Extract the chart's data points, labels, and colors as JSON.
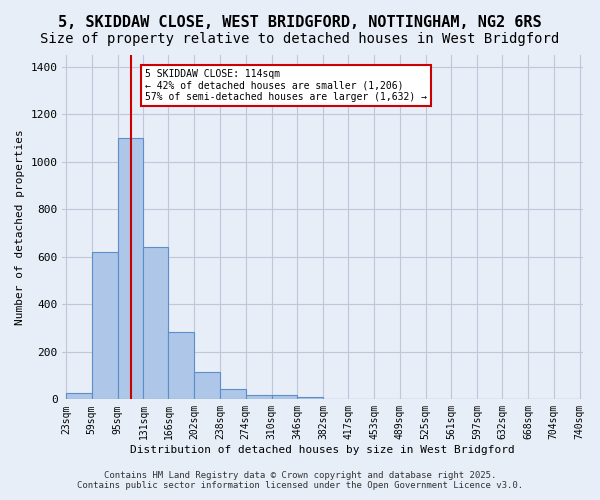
{
  "title": "5, SKIDDAW CLOSE, WEST BRIDGFORD, NOTTINGHAM, NG2 6RS",
  "subtitle": "Size of property relative to detached houses in West Bridgford",
  "xlabel": "Distribution of detached houses by size in West Bridgford",
  "ylabel": "Number of detached properties",
  "bar_edges": [
    23,
    59,
    95,
    131,
    166,
    202,
    238,
    274,
    310,
    346,
    382,
    417,
    453,
    489,
    525,
    561,
    597,
    632,
    668,
    704,
    740
  ],
  "bar_heights": [
    25,
    620,
    1100,
    640,
    285,
    115,
    45,
    20,
    20,
    10,
    0,
    0,
    0,
    0,
    0,
    0,
    0,
    0,
    0,
    0
  ],
  "bar_color": "#aec6e8",
  "bar_edge_color": "#5b8fc9",
  "bg_color": "#e8eef8",
  "grid_color": "#c0c8d8",
  "red_line_x": 114,
  "annotation_title": "5 SKIDDAW CLOSE: 114sqm",
  "annotation_line2": "← 42% of detached houses are smaller (1,206)",
  "annotation_line3": "57% of semi-detached houses are larger (1,632) →",
  "annotation_box_color": "#ffffff",
  "annotation_border_color": "#cc0000",
  "red_line_color": "#cc0000",
  "ylim": [
    0,
    1450
  ],
  "yticks": [
    0,
    200,
    400,
    600,
    800,
    1000,
    1200,
    1400
  ],
  "footer1": "Contains HM Land Registry data © Crown copyright and database right 2025.",
  "footer2": "Contains public sector information licensed under the Open Government Licence v3.0.",
  "title_fontsize": 11,
  "subtitle_fontsize": 10
}
